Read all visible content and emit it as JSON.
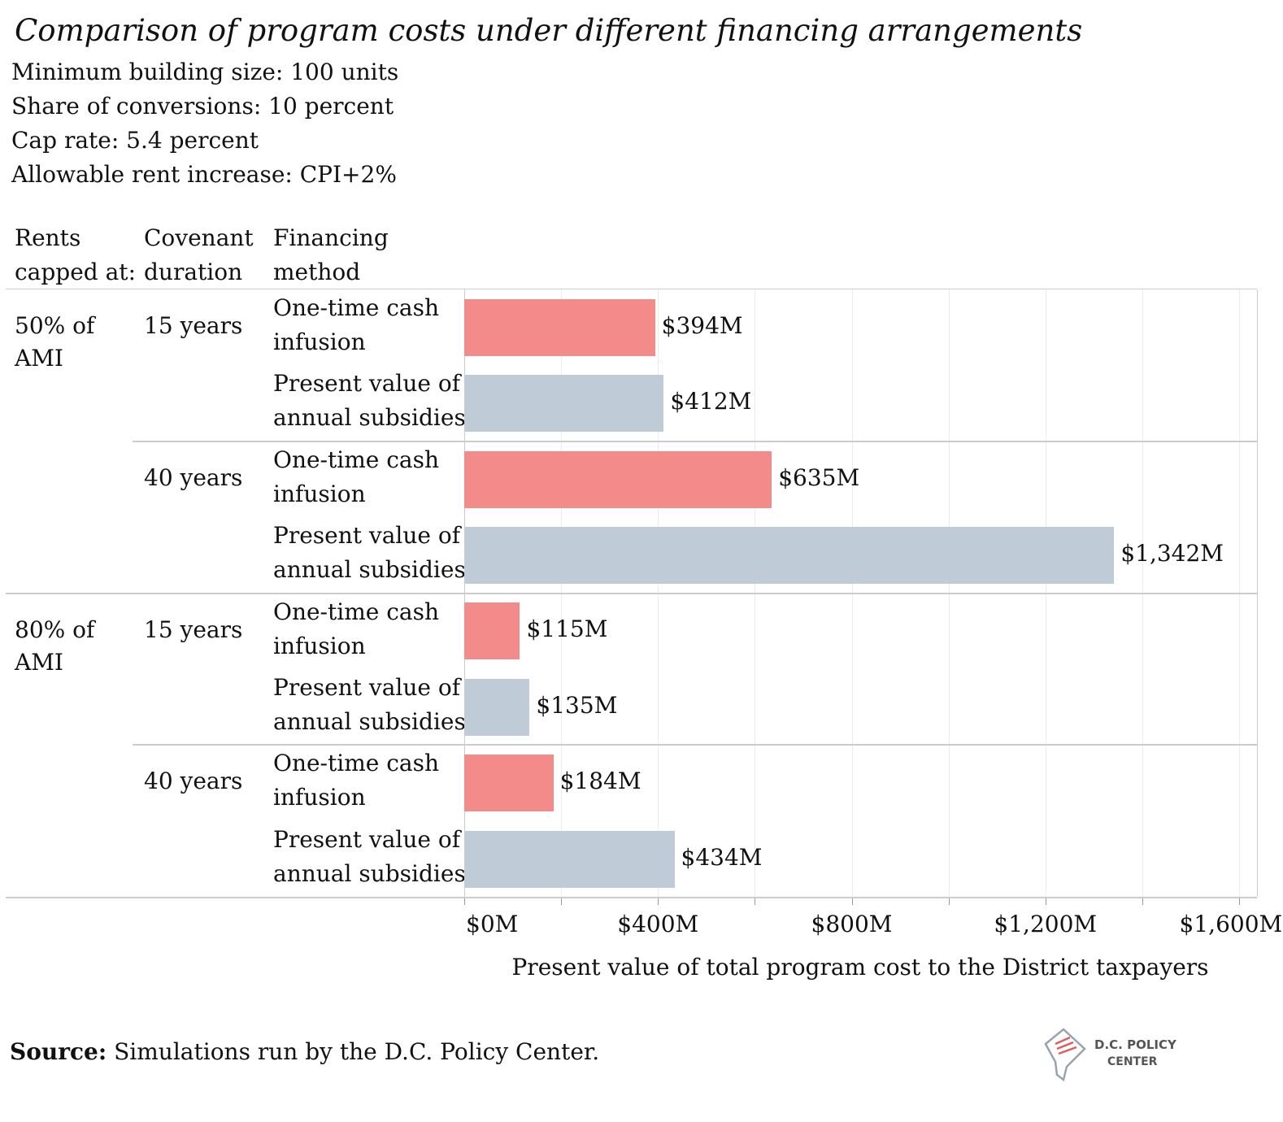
{
  "title": "Comparison of program costs under different financing arrangements",
  "subtitle_lines": [
    "Minimum building size: 100 units",
    "Share of conversions: 10 percent",
    "Cap rate: 5.4 percent",
    "Allowable rent increase: CPI+2%"
  ],
  "table_headers": {
    "rents": [
      "Rents",
      "capped at:"
    ],
    "covenant": [
      "Covenant",
      "duration"
    ],
    "financing": [
      "Financing",
      "method"
    ]
  },
  "groups": [
    {
      "rent_line1": "50% of",
      "rent_line2": "AMI",
      "durations": [
        {
          "duration": "15 years",
          "rows": [
            {
              "method_line1": "One-time cash",
              "method_line2": "infusion",
              "label": "$394M"
            },
            {
              "method_line1": "Present value of",
              "method_line2": "annual subsidies",
              "label": "$412M"
            }
          ]
        },
        {
          "duration": "40 years",
          "rows": [
            {
              "method_line1": "One-time cash",
              "method_line2": "infusion",
              "label": "$635M"
            },
            {
              "method_line1": "Present value of",
              "method_line2": "annual subsidies",
              "label": "$1,342M"
            }
          ]
        }
      ]
    },
    {
      "rent_line1": "80% of",
      "rent_line2": "AMI",
      "durations": [
        {
          "duration": "15 years",
          "rows": [
            {
              "method_line1": "One-time cash",
              "method_line2": "infusion",
              "label": "$115M"
            },
            {
              "method_line1": "Present value of",
              "method_line2": "annual subsidies",
              "label": "$135M"
            }
          ]
        },
        {
          "duration": "40 years",
          "rows": [
            {
              "method_line1": "One-time cash",
              "method_line2": "infusion",
              "label": "$184M"
            },
            {
              "method_line1": "Present value of",
              "method_line2": "annual subsidies",
              "label": "$434M"
            }
          ]
        }
      ]
    }
  ],
  "chart_data": {
    "type": "bar",
    "orientation": "horizontal",
    "categories": [
      "50% of AMI | 15 years | One-time cash infusion",
      "50% of AMI | 15 years | Present value of annual subsidies",
      "50% of AMI | 40 years | One-time cash infusion",
      "50% of AMI | 40 years | Present value of annual subsidies",
      "80% of AMI | 15 years | One-time cash infusion",
      "80% of AMI | 15 years | Present value of annual subsidies",
      "80% of AMI | 40 years | One-time cash infusion",
      "80% of AMI | 40 years | Present value of annual subsidies"
    ],
    "values": [
      394,
      412,
      635,
      1342,
      115,
      135,
      184,
      434
    ],
    "data_labels": [
      "$394M",
      "$412M",
      "$635M",
      "$1,342M",
      "$115M",
      "$135M",
      "$184M",
      "$434M"
    ],
    "title": "Comparison of program costs under different financing arrangements",
    "xlabel": "Present value of total program cost to the District taxpayers",
    "ylabel": "",
    "xlim": [
      0,
      1600
    ],
    "x_ticks": [
      0,
      400,
      800,
      1200,
      1600
    ],
    "x_tick_labels": [
      "$0M",
      "$400M",
      "$800M",
      "$1,200M",
      "$1,600M"
    ],
    "grid": true,
    "colors": {
      "One-time cash infusion": "#f28b8a",
      "Present value of annual subsidies": "#bfccd8"
    }
  },
  "source_label": "Source:",
  "source_text": " Simulations run by the D.C. Policy Center.",
  "logo": {
    "line1": "D.C. POLICY",
    "line2": "CENTER"
  }
}
